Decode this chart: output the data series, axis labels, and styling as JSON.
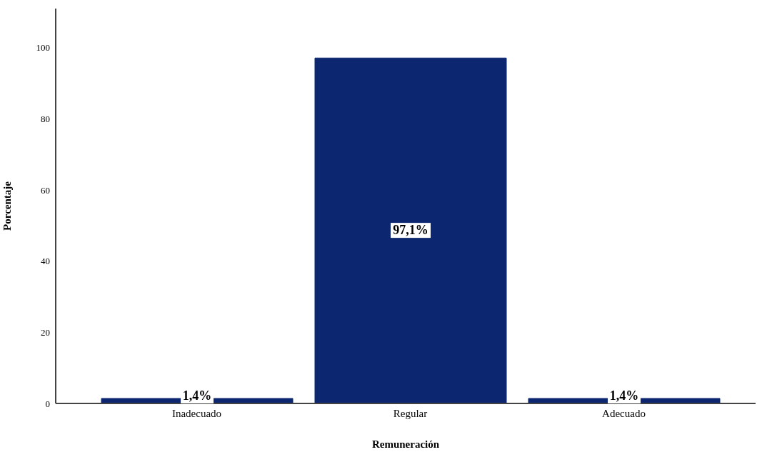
{
  "chart_data": {
    "type": "bar",
    "xlabel": "Remuneración",
    "ylabel": "Porcentaje",
    "categories": [
      "Inadecuado",
      "Regular",
      "Adecuado"
    ],
    "values": [
      1.4,
      97.1,
      1.4
    ],
    "color": "#0c2670",
    "value_labels": [
      "1,4%",
      "97,1%",
      "1,4%"
    ],
    "ylim": [
      0,
      111
    ],
    "yticks": [
      0,
      20,
      40,
      60,
      80,
      100
    ],
    "grid": false,
    "legend": false
  }
}
